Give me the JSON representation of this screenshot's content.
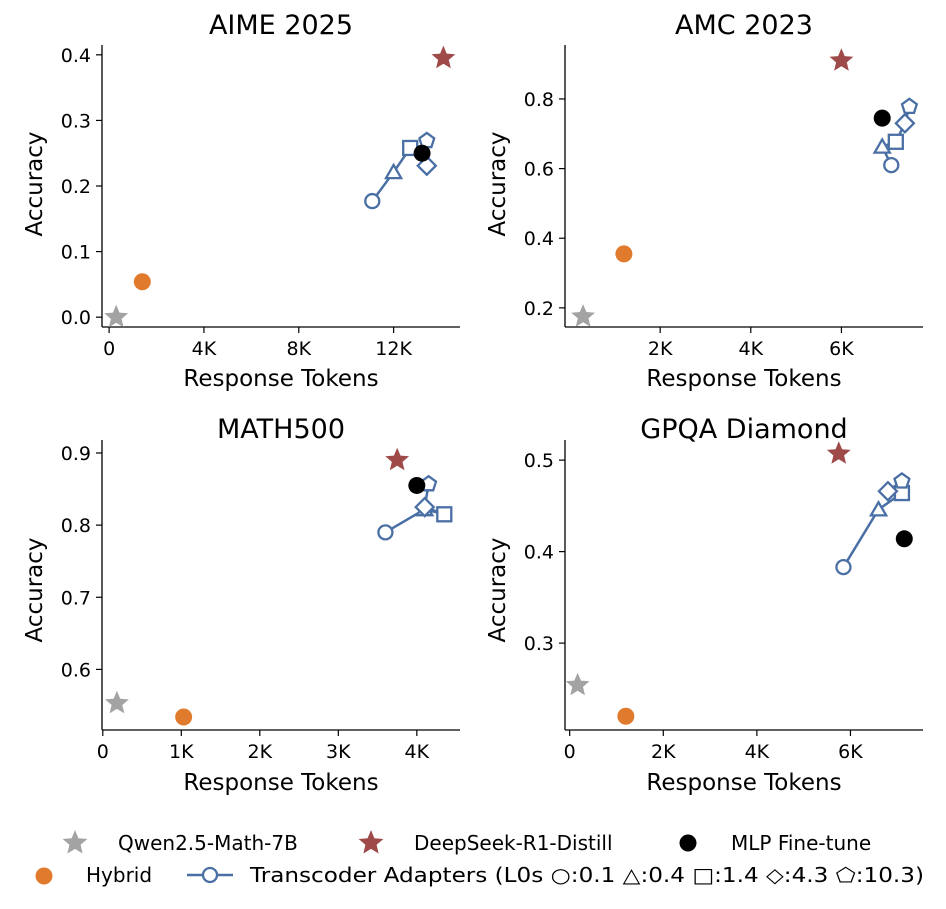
{
  "colors": {
    "qwen": "#A3A3A3",
    "deepseek": "#9E4A49",
    "mlp": "#000000",
    "hybrid": "#E07A2C",
    "transcoder": "#4A6FA5",
    "axis": "#000000"
  },
  "legend": {
    "qwen": "Qwen2.5-Math-7B",
    "deepseek": "DeepSeek-R1-Distill",
    "mlp": "MLP Fine-tune",
    "hybrid": "Hybrid",
    "transcoder": "Transcoder Adapters (L0s ○:0.1 △:0.4 □:1.4 ◇:4.3 ⬠:10.3)"
  },
  "chart_data": [
    {
      "type": "scatter",
      "title": "AIME 2025",
      "xlabel": "Response Tokens",
      "ylabel": "Accuracy",
      "xlim": [
        -300,
        14800
      ],
      "ylim": [
        -0.015,
        0.415
      ],
      "xticks": [
        0,
        4000,
        8000,
        12000
      ],
      "xtick_labels": [
        "0",
        "4K",
        "8K",
        "12K"
      ],
      "yticks": [
        0.0,
        0.1,
        0.2,
        0.3,
        0.4
      ],
      "ytick_labels": [
        "0.0",
        "0.1",
        "0.2",
        "0.3",
        "0.4"
      ],
      "qwen": [
        300,
        0.0
      ],
      "deepseek": [
        14100,
        0.395
      ],
      "mlp": [
        13200,
        0.25
      ],
      "hybrid": [
        1400,
        0.054
      ],
      "transcoder": [
        [
          11100,
          0.177
        ],
        [
          12000,
          0.221
        ],
        [
          12700,
          0.258
        ],
        [
          13400,
          0.231
        ],
        [
          13400,
          0.269
        ]
      ]
    },
    {
      "type": "scatter",
      "title": "AMC 2023",
      "xlabel": "Response Tokens",
      "ylabel": "Accuracy",
      "xlim": [
        -100,
        7800
      ],
      "ylim": [
        0.145,
        0.955
      ],
      "xticks": [
        2000,
        4000,
        6000
      ],
      "xtick_labels": [
        "2K",
        "4K",
        "6K"
      ],
      "yticks": [
        0.2,
        0.4,
        0.6,
        0.8
      ],
      "ytick_labels": [
        "0.2",
        "0.4",
        "0.6",
        "0.8"
      ],
      "qwen": [
        300,
        0.175
      ],
      "deepseek": [
        6000,
        0.91
      ],
      "mlp": [
        6900,
        0.745
      ],
      "hybrid": [
        1200,
        0.355
      ],
      "transcoder": [
        [
          7100,
          0.61
        ],
        [
          6900,
          0.663
        ],
        [
          7200,
          0.677
        ],
        [
          7400,
          0.73
        ],
        [
          7500,
          0.778
        ]
      ]
    },
    {
      "type": "scatter",
      "title": "MATH500",
      "xlabel": "Response Tokens",
      "ylabel": "Accuracy",
      "xlim": [
        -10,
        4550
      ],
      "ylim": [
        0.516,
        0.918
      ],
      "xticks": [
        0,
        1000,
        2000,
        3000,
        4000
      ],
      "xtick_labels": [
        "0",
        "1K",
        "2K",
        "3K",
        "4K"
      ],
      "yticks": [
        0.6,
        0.7,
        0.8,
        0.9
      ],
      "ytick_labels": [
        "0.6",
        "0.7",
        "0.8",
        "0.9"
      ],
      "qwen": [
        180,
        0.553
      ],
      "deepseek": [
        3750,
        0.89
      ],
      "mlp": [
        4000,
        0.855
      ],
      "hybrid": [
        1030,
        0.534
      ],
      "transcoder": [
        [
          3600,
          0.79
        ],
        [
          4100,
          0.822
        ],
        [
          4350,
          0.815
        ],
        [
          4100,
          0.825
        ],
        [
          4150,
          0.857
        ]
      ]
    },
    {
      "type": "scatter",
      "title": "GPQA Diamond",
      "xlabel": "Response Tokens",
      "ylabel": "Accuracy",
      "xlim": [
        -100,
        7550
      ],
      "ylim": [
        0.205,
        0.522
      ],
      "xticks": [
        0,
        2000,
        4000,
        6000
      ],
      "xtick_labels": [
        "0",
        "2K",
        "4K",
        "6K"
      ],
      "yticks": [
        0.3,
        0.4,
        0.5
      ],
      "ytick_labels": [
        "0.3",
        "0.4",
        "0.5"
      ],
      "qwen": [
        170,
        0.254
      ],
      "deepseek": [
        5750,
        0.507
      ],
      "mlp": [
        7150,
        0.414
      ],
      "hybrid": [
        1200,
        0.22
      ],
      "transcoder": [
        [
          5850,
          0.383
        ],
        [
          6600,
          0.446
        ],
        [
          7100,
          0.464
        ],
        [
          6800,
          0.466
        ],
        [
          7100,
          0.477
        ]
      ]
    }
  ]
}
